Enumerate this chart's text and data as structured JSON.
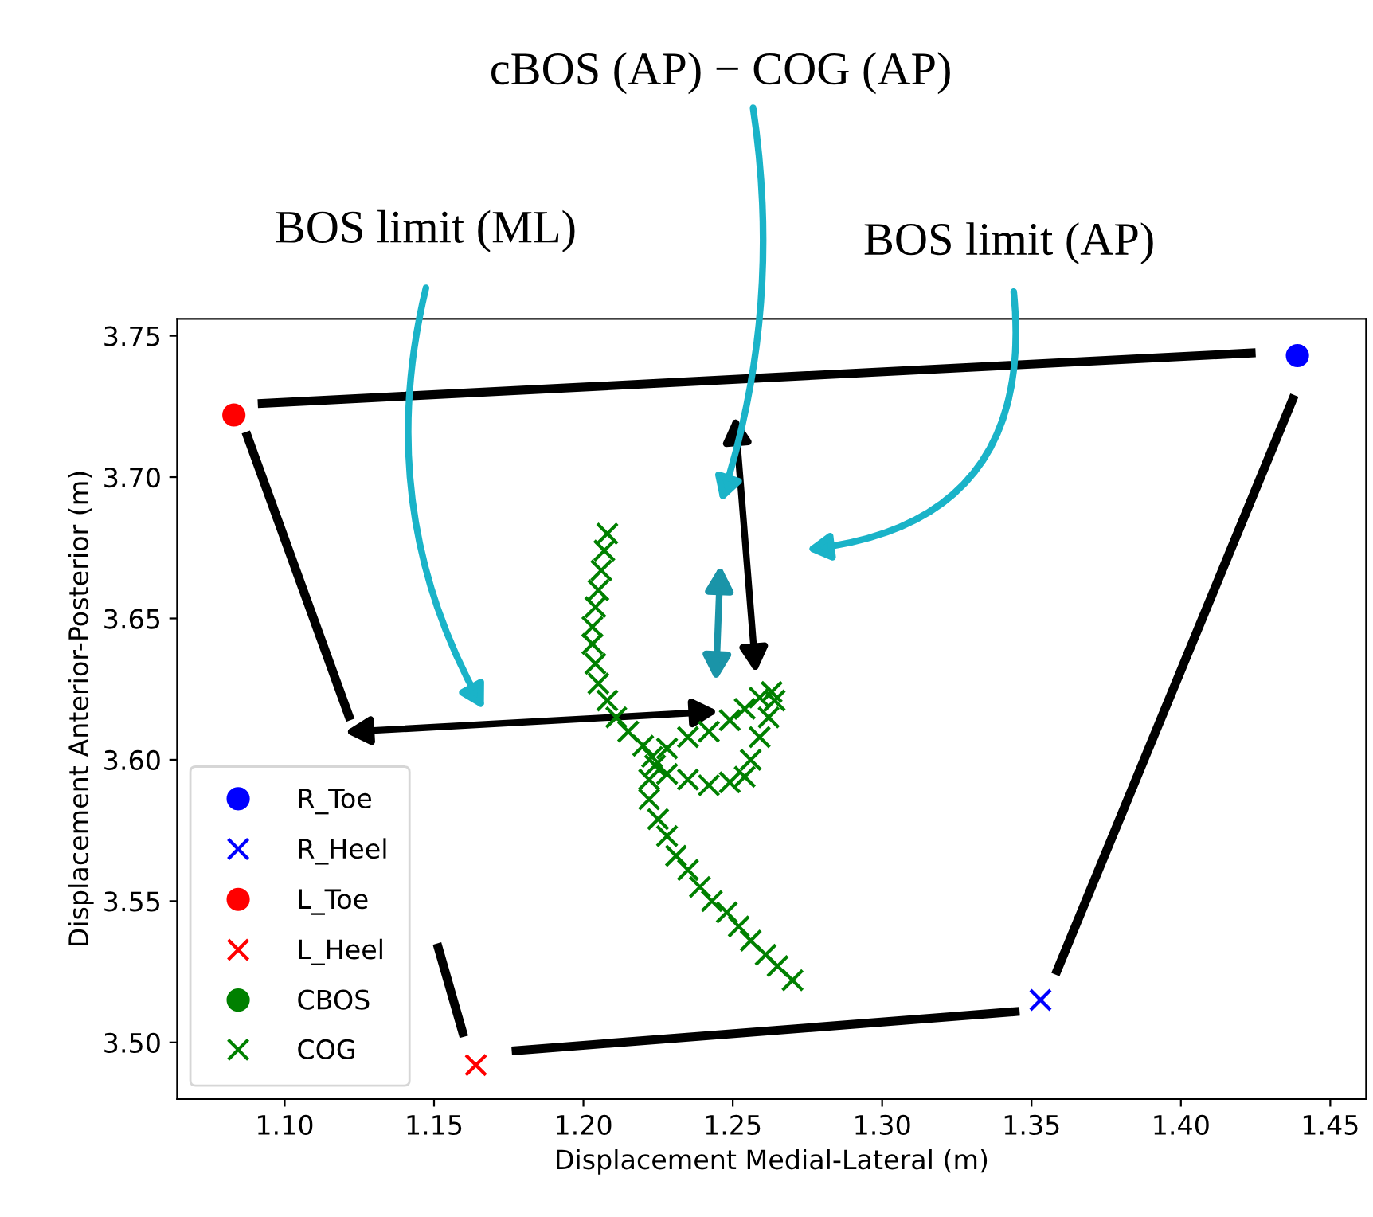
{
  "chart_data": {
    "type": "scatter",
    "xlabel": "Displacement Medial-Lateral (m)",
    "ylabel": "Displacement Anterior-Posterior (m)",
    "xlim": [
      1.064,
      1.462
    ],
    "ylim": [
      3.48,
      3.756
    ],
    "xticks": [
      {
        "value": 1.1,
        "label": "1.10"
      },
      {
        "value": 1.15,
        "label": "1.15"
      },
      {
        "value": 1.2,
        "label": "1.20"
      },
      {
        "value": 1.25,
        "label": "1.25"
      },
      {
        "value": 1.3,
        "label": "1.30"
      },
      {
        "value": 1.35,
        "label": "1.35"
      },
      {
        "value": 1.4,
        "label": "1.40"
      },
      {
        "value": 1.45,
        "label": "1.45"
      }
    ],
    "yticks": [
      {
        "value": 3.5,
        "label": "3.50"
      },
      {
        "value": 3.55,
        "label": "3.55"
      },
      {
        "value": 3.6,
        "label": "3.60"
      },
      {
        "value": 3.65,
        "label": "3.65"
      },
      {
        "value": 3.7,
        "label": "3.70"
      },
      {
        "value": 3.75,
        "label": "3.75"
      }
    ],
    "grid": false,
    "legend": "bottom left",
    "annotations": [
      "cBOS (AP) − COG (AP)",
      "BOS limit (ML)",
      "BOS limit (AP)"
    ],
    "series": [
      {
        "type": "line",
        "color": "#000000",
        "line_style": "solid",
        "marker": "none",
        "x": [
          1.091,
          1.425,
          null,
          1.087,
          1.122,
          null,
          1.438,
          1.358,
          null,
          1.176,
          1.346,
          null,
          1.151,
          1.16
        ],
        "values": [
          3.726,
          3.744,
          null,
          3.716,
          3.614,
          null,
          3.729,
          3.524,
          null,
          3.497,
          3.511,
          null,
          3.535,
          3.502
        ]
      },
      {
        "name": "R_Toe",
        "marker": "circle",
        "color": "#0000ff",
        "x": [
          1.439
        ],
        "values": [
          3.743
        ]
      },
      {
        "name": "R_Heel",
        "marker": "cross",
        "color": "#0000ff",
        "x": [
          1.353
        ],
        "values": [
          3.515
        ]
      },
      {
        "name": "L_Toe",
        "marker": "circle",
        "color": "#ff0000",
        "x": [
          1.083
        ],
        "values": [
          3.722
        ]
      },
      {
        "name": "L_Heel",
        "marker": "cross",
        "color": "#ff0000",
        "x": [
          1.164
        ],
        "values": [
          3.492
        ]
      },
      {
        "name": "CBOS",
        "marker": "circle",
        "color": "#008000",
        "x": [
          null
        ],
        "values": [
          null
        ]
      },
      {
        "name": "COG",
        "marker": "cross",
        "color": "#008000",
        "x": [
          1.208,
          1.207,
          1.206,
          1.205,
          1.204,
          1.203,
          1.203,
          1.204,
          1.205,
          1.208,
          1.211,
          1.215,
          1.22,
          1.223,
          1.228,
          1.235,
          1.242,
          1.249,
          1.254,
          1.259,
          1.263,
          1.264,
          1.262,
          1.259,
          1.256,
          1.254,
          1.249,
          1.242,
          1.235,
          1.228,
          1.224,
          1.222,
          1.222,
          1.225,
          1.228,
          1.231,
          1.235,
          1.239,
          1.243,
          1.248,
          1.252,
          1.256,
          1.261,
          1.265,
          1.27
        ],
        "values": [
          3.68,
          3.674,
          3.667,
          3.66,
          3.654,
          3.647,
          3.641,
          3.634,
          3.627,
          3.621,
          3.615,
          3.61,
          3.605,
          3.601,
          3.604,
          3.608,
          3.61,
          3.614,
          3.618,
          3.622,
          3.624,
          3.621,
          3.615,
          3.608,
          3.6,
          3.594,
          3.592,
          3.591,
          3.593,
          3.595,
          3.598,
          3.593,
          3.586,
          3.579,
          3.573,
          3.566,
          3.561,
          3.555,
          3.55,
          3.546,
          3.541,
          3.536,
          3.531,
          3.527,
          3.522
        ]
      }
    ]
  }
}
